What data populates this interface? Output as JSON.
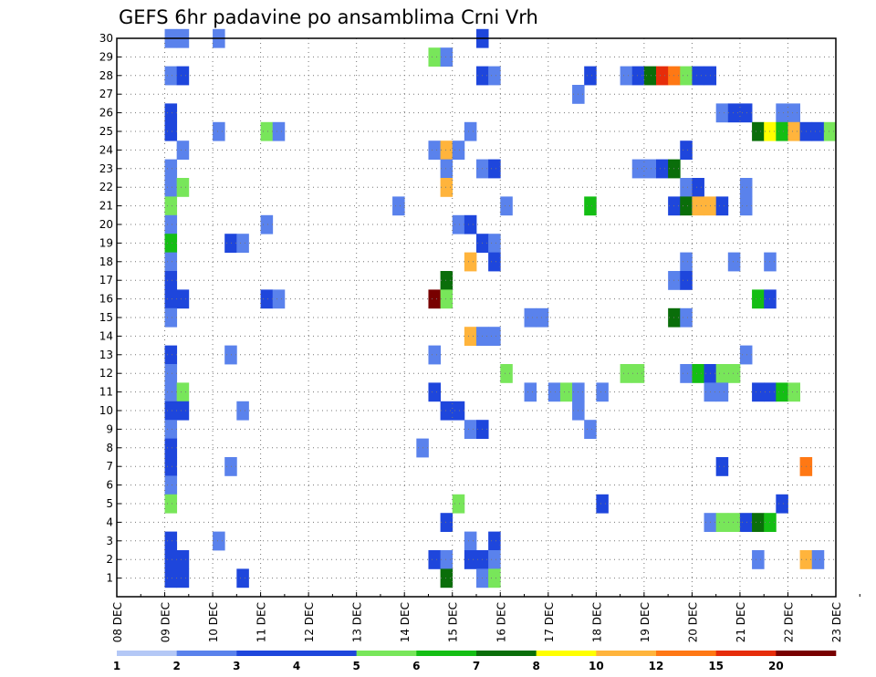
{
  "chart_data": {
    "type": "heatmap",
    "title": "GEFS 6hr padavine po ansamblima Crni Vrh",
    "xlabel": "",
    "ylabel": "",
    "x_ticks": [
      "08 DEC",
      "09 DEC",
      "10 DEC",
      "11 DEC",
      "12 DEC",
      "13 DEC",
      "14 DEC",
      "15 DEC",
      "16 DEC",
      "17 DEC",
      "18 DEC",
      "19 DEC",
      "20 DEC",
      "21 DEC",
      "22 DEC",
      "23 DEC"
    ],
    "y_ticks": [
      "1",
      "2",
      "3",
      "4",
      "5",
      "6",
      "7",
      "8",
      "9",
      "10",
      "11",
      "12",
      "13",
      "14",
      "15",
      "16",
      "17",
      "18",
      "19",
      "20",
      "21",
      "22",
      "23",
      "24",
      "25",
      "26",
      "27",
      "28",
      "29",
      "30"
    ],
    "xlim_days": [
      8,
      23
    ],
    "ylim_members": [
      0,
      30
    ],
    "grid": true,
    "time_step_hours": 6,
    "legend_position": "bottom",
    "legend": {
      "labels": [
        "1",
        "2",
        "3",
        "4",
        "5",
        "6",
        "7",
        "8",
        "10",
        "12",
        "15",
        "20"
      ],
      "colors": [
        "#b4c8f6",
        "#5a82ec",
        "#1e46dc",
        "#1e46dc",
        "#78e65a",
        "#14be14",
        "#0a6e0a",
        "#ffff00",
        "#ffb43c",
        "#ff7814",
        "#e62d0a",
        "#780000"
      ]
    },
    "cells": [
      [
        9.0,
        30,
        1
      ],
      [
        9.25,
        30,
        1
      ],
      [
        10.0,
        30,
        1
      ],
      [
        15.5,
        30,
        3
      ],
      [
        14.5,
        29,
        4
      ],
      [
        14.75,
        29,
        1
      ],
      [
        9.0,
        28,
        1
      ],
      [
        9.25,
        28,
        3
      ],
      [
        15.5,
        28,
        3
      ],
      [
        15.75,
        28,
        1
      ],
      [
        17.75,
        28,
        3
      ],
      [
        18.5,
        28,
        1
      ],
      [
        18.75,
        28,
        3
      ],
      [
        19.0,
        28,
        6
      ],
      [
        19.25,
        28,
        10
      ],
      [
        19.5,
        28,
        9
      ],
      [
        19.75,
        28,
        4
      ],
      [
        20.0,
        28,
        2
      ],
      [
        20.25,
        28,
        2
      ],
      [
        17.5,
        27,
        1
      ],
      [
        9.0,
        26,
        3
      ],
      [
        20.5,
        26,
        1
      ],
      [
        20.75,
        26,
        2
      ],
      [
        21.0,
        26,
        2
      ],
      [
        21.75,
        26,
        1
      ],
      [
        22.0,
        26,
        1
      ],
      [
        9.0,
        25,
        2
      ],
      [
        10.0,
        25,
        1
      ],
      [
        11.0,
        25,
        4
      ],
      [
        11.25,
        25,
        1
      ],
      [
        15.25,
        25,
        1
      ],
      [
        21.25,
        25,
        6
      ],
      [
        21.5,
        25,
        7
      ],
      [
        21.75,
        25,
        5
      ],
      [
        22.0,
        25,
        8
      ],
      [
        22.25,
        25,
        3
      ],
      [
        22.5,
        25,
        3
      ],
      [
        22.75,
        25,
        4
      ],
      [
        9.25,
        24,
        1
      ],
      [
        14.5,
        24,
        1
      ],
      [
        14.75,
        24,
        8
      ],
      [
        15.0,
        24,
        1
      ],
      [
        19.75,
        24,
        2
      ],
      [
        9.0,
        23,
        1
      ],
      [
        14.75,
        23,
        1
      ],
      [
        15.5,
        23,
        1
      ],
      [
        15.75,
        23,
        2
      ],
      [
        18.75,
        23,
        1
      ],
      [
        19.0,
        23,
        1
      ],
      [
        19.25,
        23,
        2
      ],
      [
        19.5,
        23,
        6
      ],
      [
        9.0,
        22,
        1
      ],
      [
        9.25,
        22,
        4
      ],
      [
        14.75,
        22,
        8
      ],
      [
        19.75,
        22,
        1
      ],
      [
        20.0,
        22,
        2
      ],
      [
        21.0,
        22,
        1
      ],
      [
        9.0,
        21,
        4
      ],
      [
        13.75,
        21,
        1
      ],
      [
        16.0,
        21,
        1
      ],
      [
        17.75,
        21,
        5
      ],
      [
        19.5,
        21,
        2
      ],
      [
        19.75,
        21,
        6
      ],
      [
        20.0,
        21,
        8
      ],
      [
        20.25,
        21,
        8
      ],
      [
        20.5,
        21,
        2
      ],
      [
        21.0,
        21,
        1
      ],
      [
        9.0,
        20,
        1
      ],
      [
        11.0,
        20,
        1
      ],
      [
        15.0,
        20,
        1
      ],
      [
        15.25,
        20,
        3
      ],
      [
        9.0,
        19,
        5
      ],
      [
        10.25,
        19,
        2
      ],
      [
        10.5,
        19,
        1
      ],
      [
        15.5,
        19,
        2
      ],
      [
        15.75,
        19,
        1
      ],
      [
        9.0,
        18,
        1
      ],
      [
        15.25,
        18,
        8
      ],
      [
        15.75,
        18,
        2
      ],
      [
        19.75,
        18,
        1
      ],
      [
        20.75,
        18,
        1
      ],
      [
        21.5,
        18,
        1
      ],
      [
        9.0,
        17,
        3
      ],
      [
        14.75,
        17,
        6
      ],
      [
        19.5,
        17,
        1
      ],
      [
        19.75,
        17,
        3
      ],
      [
        9.0,
        16,
        2
      ],
      [
        9.25,
        16,
        2
      ],
      [
        11.0,
        16,
        2
      ],
      [
        11.25,
        16,
        1
      ],
      [
        14.5,
        16,
        11
      ],
      [
        14.75,
        16,
        4
      ],
      [
        21.25,
        16,
        5
      ],
      [
        21.5,
        16,
        2
      ],
      [
        9.0,
        15,
        1
      ],
      [
        16.5,
        15,
        1
      ],
      [
        16.75,
        15,
        1
      ],
      [
        19.5,
        15,
        6
      ],
      [
        19.75,
        15,
        1
      ],
      [
        15.25,
        14,
        8
      ],
      [
        15.5,
        14,
        1
      ],
      [
        15.75,
        14,
        1
      ],
      [
        9.0,
        13,
        2
      ],
      [
        10.25,
        13,
        1
      ],
      [
        14.5,
        13,
        1
      ],
      [
        21.0,
        13,
        1
      ],
      [
        9.0,
        12,
        1
      ],
      [
        16.0,
        12,
        4
      ],
      [
        18.5,
        12,
        4
      ],
      [
        18.75,
        12,
        4
      ],
      [
        19.75,
        12,
        1
      ],
      [
        20.0,
        12,
        5
      ],
      [
        20.25,
        12,
        3
      ],
      [
        20.5,
        12,
        4
      ],
      [
        20.75,
        12,
        4
      ],
      [
        9.0,
        11,
        1
      ],
      [
        9.25,
        11,
        4
      ],
      [
        14.5,
        11,
        2
      ],
      [
        16.5,
        11,
        1
      ],
      [
        17.0,
        11,
        1
      ],
      [
        17.25,
        11,
        4
      ],
      [
        17.5,
        11,
        1
      ],
      [
        18.0,
        11,
        1
      ],
      [
        20.25,
        11,
        1
      ],
      [
        20.5,
        11,
        1
      ],
      [
        21.25,
        11,
        2
      ],
      [
        21.5,
        11,
        2
      ],
      [
        21.75,
        11,
        5
      ],
      [
        22.0,
        11,
        4
      ],
      [
        9.0,
        10,
        2
      ],
      [
        9.25,
        10,
        2
      ],
      [
        10.5,
        10,
        1
      ],
      [
        14.75,
        10,
        2
      ],
      [
        15.0,
        10,
        3
      ],
      [
        17.5,
        10,
        1
      ],
      [
        9.0,
        9,
        1
      ],
      [
        15.25,
        9,
        1
      ],
      [
        15.5,
        9,
        2
      ],
      [
        17.75,
        9,
        1
      ],
      [
        9.0,
        8,
        2
      ],
      [
        14.25,
        8,
        1
      ],
      [
        9.0,
        7,
        3
      ],
      [
        10.25,
        7,
        1
      ],
      [
        20.5,
        7,
        2
      ],
      [
        22.25,
        7,
        9
      ],
      [
        9.0,
        6,
        1
      ],
      [
        9.0,
        5,
        4
      ],
      [
        15.0,
        5,
        4
      ],
      [
        18.0,
        5,
        3
      ],
      [
        21.75,
        5,
        3
      ],
      [
        14.75,
        4,
        3
      ],
      [
        20.25,
        4,
        1
      ],
      [
        20.5,
        4,
        4
      ],
      [
        20.75,
        4,
        4
      ],
      [
        21.0,
        4,
        2
      ],
      [
        21.25,
        4,
        6
      ],
      [
        21.5,
        4,
        5
      ],
      [
        9.0,
        3,
        2
      ],
      [
        10.0,
        3,
        1
      ],
      [
        15.25,
        3,
        1
      ],
      [
        15.75,
        3,
        3
      ],
      [
        9.0,
        2,
        2
      ],
      [
        9.25,
        2,
        3
      ],
      [
        14.5,
        2,
        3
      ],
      [
        14.75,
        2,
        1
      ],
      [
        15.25,
        2,
        3
      ],
      [
        15.5,
        2,
        3
      ],
      [
        15.75,
        2,
        1
      ],
      [
        21.25,
        2,
        1
      ],
      [
        22.25,
        2,
        8
      ],
      [
        22.5,
        2,
        1
      ],
      [
        9.0,
        1,
        2
      ],
      [
        9.25,
        1,
        2
      ],
      [
        10.5,
        1,
        3
      ],
      [
        14.75,
        1,
        6
      ],
      [
        15.5,
        1,
        1
      ],
      [
        15.75,
        1,
        4
      ]
    ]
  }
}
